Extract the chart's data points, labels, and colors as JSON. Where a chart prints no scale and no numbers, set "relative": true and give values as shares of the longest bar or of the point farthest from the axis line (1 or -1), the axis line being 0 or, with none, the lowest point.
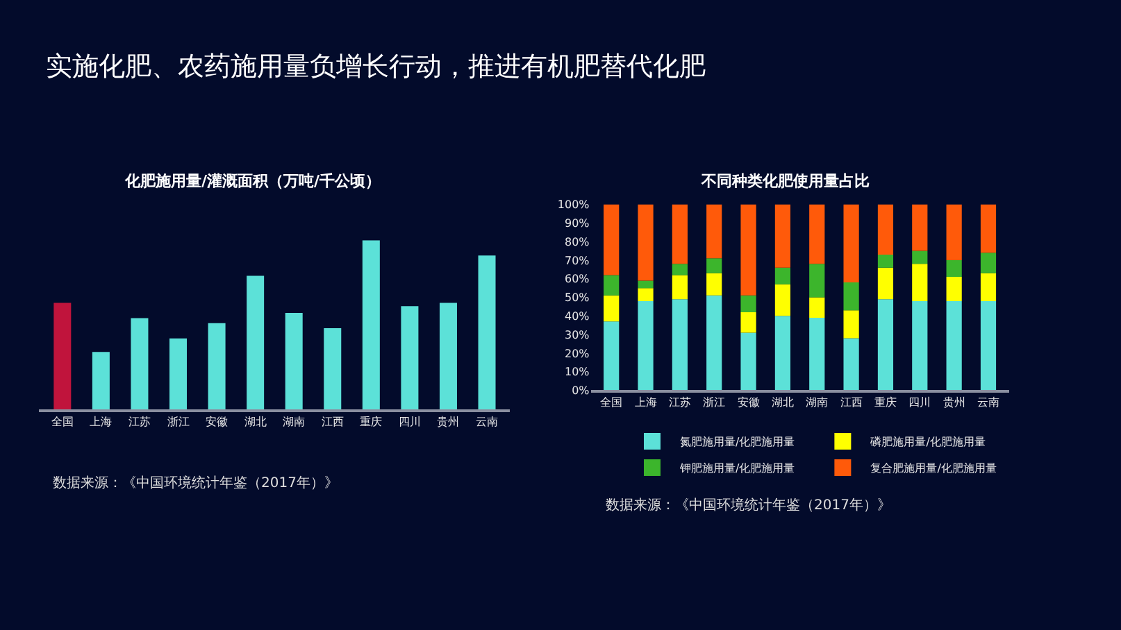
{
  "chart_data": [
    {
      "type": "bar",
      "title": "实施化肥、农药施用量负增长行动，推进有机肥替代化肥",
      "subtitle": "化肥施用量/灌溉面积（万吨/千公顷）",
      "relative": true,
      "categories": [
        "全国",
        "上海",
        "江苏",
        "浙江",
        "安徽",
        "湖北",
        "湖南",
        "江西",
        "重庆",
        "四川",
        "贵州",
        "云南"
      ],
      "values": [
        0.63,
        0.34,
        0.54,
        0.42,
        0.51,
        0.79,
        0.57,
        0.48,
        1,
        0.61,
        0.63,
        0.91
      ],
      "colors": [
        "#c0143c",
        "#5ce1d8",
        "#5ce1d8",
        "#5ce1d8",
        "#5ce1d8",
        "#5ce1d8",
        "#5ce1d8",
        "#5ce1d8",
        "#5ce1d8",
        "#5ce1d8",
        "#5ce1d8",
        "#5ce1d8"
      ],
      "grid": false,
      "legend": false,
      "annotations": [
        "数据来源：《中国环境统计年鉴（2017年）》"
      ]
    },
    {
      "type": "bar",
      "title": "不同种类化肥使用量占比",
      "stacked": true,
      "categories": [
        "全国",
        "上海",
        "江苏",
        "浙江",
        "安徽",
        "湖北",
        "湖南",
        "江西",
        "重庆",
        "四川",
        "贵州",
        "云南"
      ],
      "series": [
        {
          "name": "氮肥施用量/化肥施用量",
          "color": "#5ce1d8",
          "values": [
            37,
            48,
            49,
            51,
            31,
            40,
            39,
            28,
            49,
            48,
            48,
            48
          ]
        },
        {
          "name": "磷肥施用量/化肥施用量",
          "color": "#ffff00",
          "values": [
            14,
            7,
            13,
            12,
            11,
            17,
            11,
            15,
            17,
            20,
            13,
            15
          ]
        },
        {
          "name": "钾肥施用量/化肥施用量",
          "color": "#3cb52c",
          "values": [
            11,
            4,
            6,
            8,
            9,
            9,
            18,
            15,
            7,
            7,
            9,
            11
          ]
        },
        {
          "name": "复合肥施用量/化肥施用量",
          "color": "#ff5a0a",
          "values": [
            38,
            41,
            32,
            29,
            49,
            34,
            32,
            42,
            27,
            25,
            30,
            26
          ]
        }
      ],
      "ylim": [
        0,
        100
      ],
      "yticks": [
        {
          "value": 0,
          "label": "0%"
        },
        {
          "value": 10,
          "label": "10%"
        },
        {
          "value": 20,
          "label": "20%"
        },
        {
          "value": 30,
          "label": "30%"
        },
        {
          "value": 40,
          "label": "40%"
        },
        {
          "value": 50,
          "label": "50%"
        },
        {
          "value": 60,
          "label": "60%"
        },
        {
          "value": 70,
          "label": "70%"
        },
        {
          "value": 80,
          "label": "80%"
        },
        {
          "value": 90,
          "label": "90%"
        },
        {
          "value": 100,
          "label": "100%"
        }
      ],
      "grid": false,
      "legend": "bottom",
      "annotations": [
        "数据来源：《中国环境统计年鉴（2017年）》"
      ]
    }
  ]
}
